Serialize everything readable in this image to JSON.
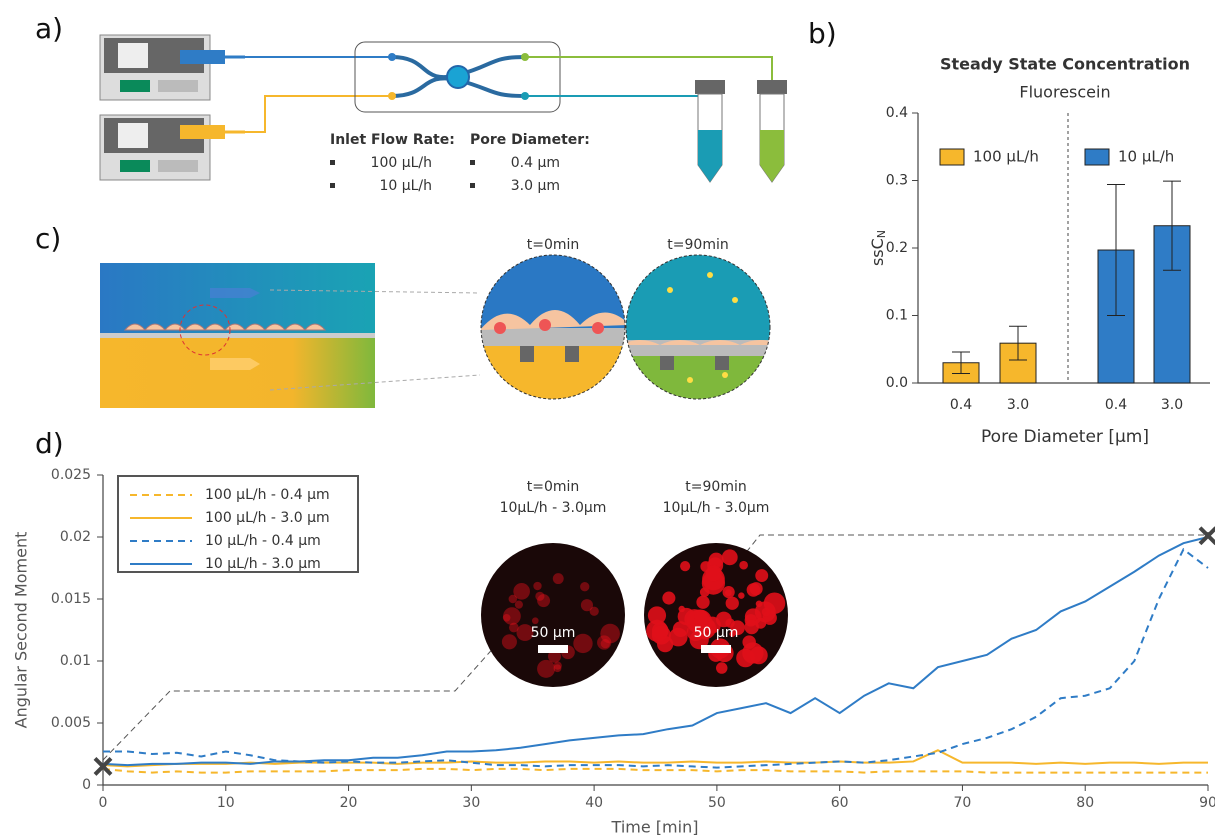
{
  "panel_a": {
    "label": "a)",
    "inlet_flow_rate": {
      "title": "Inlet Flow Rate:",
      "items": [
        "100 µL/h",
        "10 µL/h"
      ]
    },
    "pore_diameter": {
      "title": "Pore Diameter:",
      "items": [
        "0.4 µm",
        "3.0 µm"
      ]
    }
  },
  "panel_c": {
    "label": "c)",
    "snapshots": [
      "t=0min",
      "t=90min"
    ]
  },
  "panel_d_insets": [
    {
      "time": "t=0min",
      "condition": "10µL/h - 3.0µm",
      "scale_bar": "50 µm"
    },
    {
      "time": "t=90min",
      "condition": "10µL/h - 3.0µm",
      "scale_bar": "50 µm"
    }
  ],
  "chart_data": [
    {
      "type": "bar",
      "panel_label": "b)",
      "title": "Steady State Concentration",
      "subtitle": "Fluorescein",
      "ylabel": "ssC",
      "ylabel_subscript": "N",
      "xlabel": "Pore Diameter [µm]",
      "categories": [
        "0.4",
        "3.0",
        "0.4",
        "3.0"
      ],
      "series": [
        {
          "name": "100 µL/h",
          "color": "#f6b72c",
          "values": [
            0.03,
            0.059,
            null,
            null
          ],
          "errors": [
            0.016,
            0.025,
            null,
            null
          ]
        },
        {
          "name": "10 µL/h",
          "color": "#2f7cc6",
          "values": [
            null,
            null,
            0.197,
            0.233
          ],
          "errors": [
            null,
            null,
            0.097,
            0.066
          ]
        }
      ],
      "ylim": [
        0,
        0.4
      ],
      "yticks": [
        {
          "value": 0,
          "label": "0.0"
        },
        0.1,
        0.2,
        0.3,
        0.4
      ],
      "grid": false
    },
    {
      "type": "line",
      "panel_label": "d)",
      "xlabel": "Time [min]",
      "ylabel": "Angular Second Moment",
      "x": [
        0,
        2,
        4,
        6,
        8,
        10,
        12,
        14,
        16,
        18,
        20,
        22,
        24,
        26,
        28,
        30,
        32,
        34,
        36,
        38,
        40,
        42,
        44,
        46,
        48,
        50,
        52,
        54,
        56,
        58,
        60,
        62,
        64,
        66,
        68,
        70,
        72,
        74,
        76,
        78,
        80,
        82,
        84,
        86,
        88,
        90
      ],
      "series": [
        {
          "name": "100 µL/h - 0.4 µm",
          "color": "#f6b72c",
          "line_style": "dashed",
          "values": [
            0.0013,
            0.0011,
            0.001,
            0.0011,
            0.001,
            0.001,
            0.0011,
            0.0011,
            0.0011,
            0.0011,
            0.0012,
            0.0012,
            0.0012,
            0.0013,
            0.0013,
            0.0012,
            0.0013,
            0.0013,
            0.0012,
            0.0013,
            0.0013,
            0.0013,
            0.0012,
            0.0012,
            0.0012,
            0.0011,
            0.0012,
            0.0012,
            0.0011,
            0.0011,
            0.0011,
            0.001,
            0.0011,
            0.0011,
            0.0011,
            0.0011,
            0.001,
            0.001,
            0.001,
            0.001,
            0.001,
            0.001,
            0.001,
            0.001,
            0.001,
            0.001
          ]
        },
        {
          "name": "100 µL/h - 3.0 µm",
          "color": "#f6b72c",
          "line_style": "solid",
          "values": [
            0.0016,
            0.0015,
            0.0016,
            0.0017,
            0.0017,
            0.0017,
            0.0018,
            0.0017,
            0.0018,
            0.0018,
            0.0018,
            0.0018,
            0.0017,
            0.0018,
            0.0018,
            0.0019,
            0.0018,
            0.0018,
            0.0019,
            0.0019,
            0.0018,
            0.0019,
            0.0018,
            0.0018,
            0.0019,
            0.0018,
            0.0018,
            0.0019,
            0.0018,
            0.0018,
            0.0019,
            0.0018,
            0.0018,
            0.0019,
            0.0028,
            0.0018,
            0.0018,
            0.0018,
            0.0017,
            0.0018,
            0.0017,
            0.0018,
            0.0018,
            0.0017,
            0.0018,
            0.0018
          ]
        },
        {
          "name": "10 µL/h - 0.4 µm",
          "color": "#2f7cc6",
          "line_style": "dashed",
          "values": [
            0.0027,
            0.0027,
            0.0025,
            0.0026,
            0.0023,
            0.0027,
            0.0024,
            0.002,
            0.0019,
            0.0018,
            0.0019,
            0.0018,
            0.0018,
            0.0019,
            0.002,
            0.0018,
            0.0016,
            0.0016,
            0.0015,
            0.0016,
            0.0016,
            0.0016,
            0.0015,
            0.0016,
            0.0015,
            0.0014,
            0.0015,
            0.0016,
            0.0017,
            0.0018,
            0.0019,
            0.0018,
            0.002,
            0.0023,
            0.0026,
            0.0033,
            0.0038,
            0.0045,
            0.0055,
            0.007,
            0.0072,
            0.0078,
            0.01,
            0.015,
            0.019,
            0.0175
          ]
        },
        {
          "name": "10 µL/h - 3.0 µm",
          "color": "#2f7cc6",
          "line_style": "solid",
          "values": [
            0.0017,
            0.0016,
            0.0017,
            0.0017,
            0.0018,
            0.0018,
            0.0017,
            0.0019,
            0.0019,
            0.002,
            0.002,
            0.0022,
            0.0022,
            0.0024,
            0.0027,
            0.0027,
            0.0028,
            0.003,
            0.0033,
            0.0036,
            0.0038,
            0.004,
            0.0041,
            0.0045,
            0.0048,
            0.0058,
            0.0062,
            0.0066,
            0.0058,
            0.007,
            0.0058,
            0.0072,
            0.0082,
            0.0078,
            0.0095,
            0.01,
            0.0105,
            0.0118,
            0.0125,
            0.014,
            0.0148,
            0.016,
            0.0172,
            0.0185,
            0.0195,
            0.02
          ]
        }
      ],
      "xlim": [
        0,
        90
      ],
      "xticks": [
        0,
        10,
        20,
        30,
        40,
        50,
        60,
        70,
        80,
        90
      ],
      "ylim": [
        0,
        0.025
      ],
      "yticks": [
        0,
        0.005,
        0.01,
        0.015,
        0.02,
        0.025
      ]
    }
  ]
}
